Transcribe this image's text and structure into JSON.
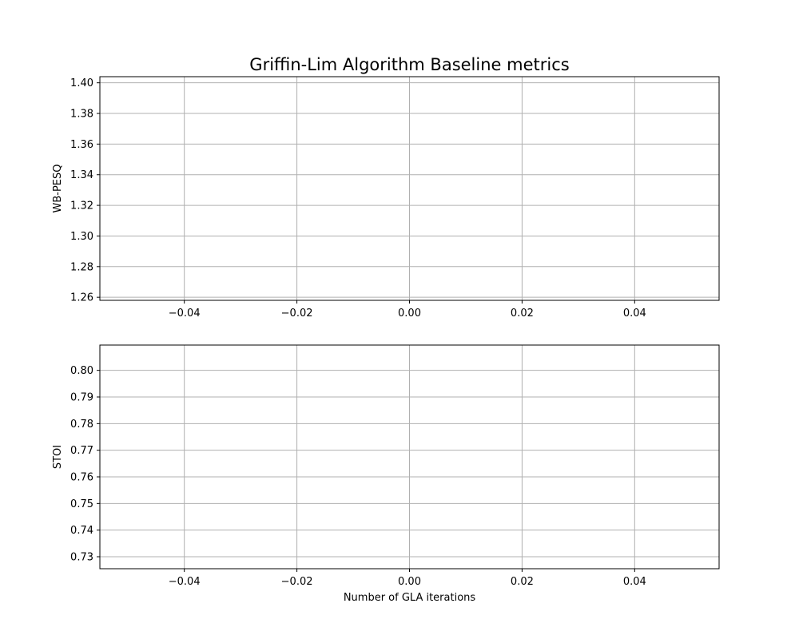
{
  "figure": {
    "title": "Griffin-Lim Algorithm Baseline metrics",
    "grid_color": "#b0b0b0",
    "spine_color": "#000000",
    "background": "#ffffff"
  },
  "chart_data": [
    {
      "type": "line",
      "title": "Griffin-Lim Algorithm Baseline metrics",
      "xlabel": "",
      "ylabel": "WB-PESQ",
      "xlim": [
        -0.055,
        0.055
      ],
      "ylim": [
        1.258,
        1.404
      ],
      "xticks": [
        -0.04,
        -0.02,
        0.0,
        0.02,
        0.04
      ],
      "xtick_labels": [
        "−0.04",
        "−0.02",
        "0.00",
        "0.02",
        "0.04"
      ],
      "yticks": [
        1.26,
        1.28,
        1.3,
        1.32,
        1.34,
        1.36,
        1.38,
        1.4
      ],
      "ytick_labels": [
        "1.26",
        "1.28",
        "1.30",
        "1.32",
        "1.34",
        "1.36",
        "1.38",
        "1.40"
      ],
      "grid": true,
      "series": []
    },
    {
      "type": "line",
      "title": "",
      "xlabel": "Number of GLA iterations",
      "ylabel": "STOI",
      "xlim": [
        -0.055,
        0.055
      ],
      "ylim": [
        0.7255,
        0.8095
      ],
      "xticks": [
        -0.04,
        -0.02,
        0.0,
        0.02,
        0.04
      ],
      "xtick_labels": [
        "−0.04",
        "−0.02",
        "0.00",
        "0.02",
        "0.04"
      ],
      "yticks": [
        0.73,
        0.74,
        0.75,
        0.76,
        0.77,
        0.78,
        0.79,
        0.8
      ],
      "ytick_labels": [
        "0.73",
        "0.74",
        "0.75",
        "0.76",
        "0.77",
        "0.78",
        "0.79",
        "0.80"
      ],
      "grid": true,
      "series": []
    }
  ]
}
